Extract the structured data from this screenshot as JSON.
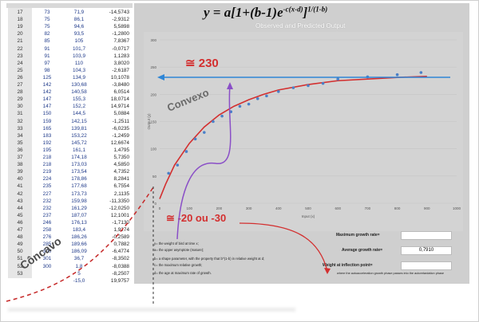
{
  "formula": {
    "prefix": "y = a[",
    "middle": "1+(b-1)e",
    "exp1": "-c(x-d)",
    "suffix": "]",
    "exp2": "1/(1-b)"
  },
  "chart": {
    "title": "Observed and Predicted Output",
    "legend": [
      "Prediction Output",
      "Output (y)"
    ],
    "xlabel": "Input (x)",
    "ylabel": "Output (y)"
  },
  "annotations": {
    "asymptote": "≅ 230",
    "inflection": "≅ -20 ou -30",
    "convex": "Convexo",
    "concave": "Côncavo"
  },
  "colors": {
    "red": "#d32f2f",
    "blue": "#2f86d6",
    "purple": "#8a4fc7",
    "sheet_bg": "#cfcfcf"
  },
  "rate_boxes": {
    "max_label": "Maximum growth rate=",
    "avg_label": "Average growth rate=",
    "avg_value": "0,7910",
    "weight_label": "Weight at inflection point=",
    "note": "where the autoacceleration growth phase passes into the autoretardation phase"
  },
  "definitions": [
    "y= the weight of bird at time x;",
    "a= the upper asymptote (mature);",
    "b= a shape parameter, with the property that b^(1-b) in relative weight at d;",
    "c= the maximum relative growth;",
    "d= the age at maximum rate of growth."
  ],
  "chart_data": {
    "type": "line",
    "xlim": [
      0,
      1000
    ],
    "ylim": [
      0,
      300
    ],
    "x_ticks": [
      "0",
      "100",
      "200",
      "300",
      "400",
      "500",
      "600",
      "700",
      "800",
      "900",
      "1000"
    ],
    "y_ticks": [
      "0",
      "50",
      "100",
      "150",
      "200",
      "250",
      "300"
    ],
    "series": [
      {
        "name": "Prediction Output",
        "x": [
          0,
          20,
          50,
          100,
          150,
          200,
          250,
          300,
          350,
          400,
          500,
          600,
          700,
          800,
          900
        ],
        "y": [
          8,
          35,
          70,
          110,
          140,
          162,
          178,
          190,
          200,
          208,
          218,
          225,
          228,
          231,
          233
        ]
      },
      {
        "name": "Output (y)",
        "x": [
          30,
          60,
          90,
          120,
          150,
          180,
          210,
          240,
          270,
          300,
          330,
          360,
          400,
          450,
          500,
          550,
          600,
          700,
          800,
          880
        ],
        "y": [
          55,
          70,
          95,
          118,
          130,
          150,
          160,
          168,
          178,
          182,
          192,
          197,
          205,
          212,
          216,
          220,
          228,
          232,
          236,
          240
        ]
      }
    ]
  },
  "table": [
    [
      "17",
      "73",
      "71,9",
      "-14,5743"
    ],
    [
      "18",
      "75",
      "86,1",
      "-2,9312"
    ],
    [
      "19",
      "75",
      "94,6",
      "5,5898"
    ],
    [
      "20",
      "82",
      "93,5",
      "-1,2800"
    ],
    [
      "21",
      "85",
      "105",
      "7,8367"
    ],
    [
      "22",
      "91",
      "101,7",
      "-0,0717"
    ],
    [
      "23",
      "91",
      "103,9",
      "1,1283"
    ],
    [
      "24",
      "97",
      "110",
      "3,8020"
    ],
    [
      "25",
      "98",
      "104,3",
      "-2,6187"
    ],
    [
      "26",
      "125",
      "134,9",
      "10,1078"
    ],
    [
      "27",
      "142",
      "130,68",
      "-3,8480"
    ],
    [
      "28",
      "142",
      "140,58",
      "6,0514"
    ],
    [
      "29",
      "147",
      "155,3",
      "18,0714"
    ],
    [
      "30",
      "147",
      "152,2",
      "14,9714"
    ],
    [
      "31",
      "150",
      "144,5",
      "5,0884"
    ],
    [
      "32",
      "159",
      "142,15",
      "-1,2511"
    ],
    [
      "33",
      "165",
      "139,81",
      "-6,0235"
    ],
    [
      "34",
      "183",
      "153,22",
      "-1,2459"
    ],
    [
      "35",
      "192",
      "145,72",
      "12,6674"
    ],
    [
      "36",
      "195",
      "161,1",
      "1,4795"
    ],
    [
      "37",
      "218",
      "174,18",
      "5,7350"
    ],
    [
      "38",
      "218",
      "173,03",
      "4,5850"
    ],
    [
      "39",
      "219",
      "173,54",
      "4,7352"
    ],
    [
      "40",
      "224",
      "178,86",
      "8,2841"
    ],
    [
      "41",
      "235",
      "177,68",
      "6,7554"
    ],
    [
      "42",
      "227",
      "173,73",
      "2,1135"
    ],
    [
      "43",
      "232",
      "159,98",
      "-11,3350"
    ],
    [
      "44",
      "232",
      "161,29",
      "-12,0250"
    ],
    [
      "45",
      "237",
      "187,07",
      "12,1001"
    ],
    [
      "46",
      "246",
      "176,13",
      "-1,7130"
    ],
    [
      "47",
      "258",
      "183,4",
      "1,9274"
    ],
    [
      "48",
      "276",
      "186,26",
      "-0,2589"
    ],
    [
      "49",
      "285",
      "189,66",
      "0,7882"
    ],
    [
      "50",
      "300",
      "186,09",
      "-6,4774"
    ],
    [
      "51",
      "301",
      "36,7",
      "-8,3502"
    ],
    [
      "52",
      "300",
      "1,8",
      "-8,0388"
    ],
    [
      "53",
      "",
      "5",
      "-8,2507"
    ],
    [
      "",
      "",
      "-15,0",
      "19,9757"
    ]
  ]
}
